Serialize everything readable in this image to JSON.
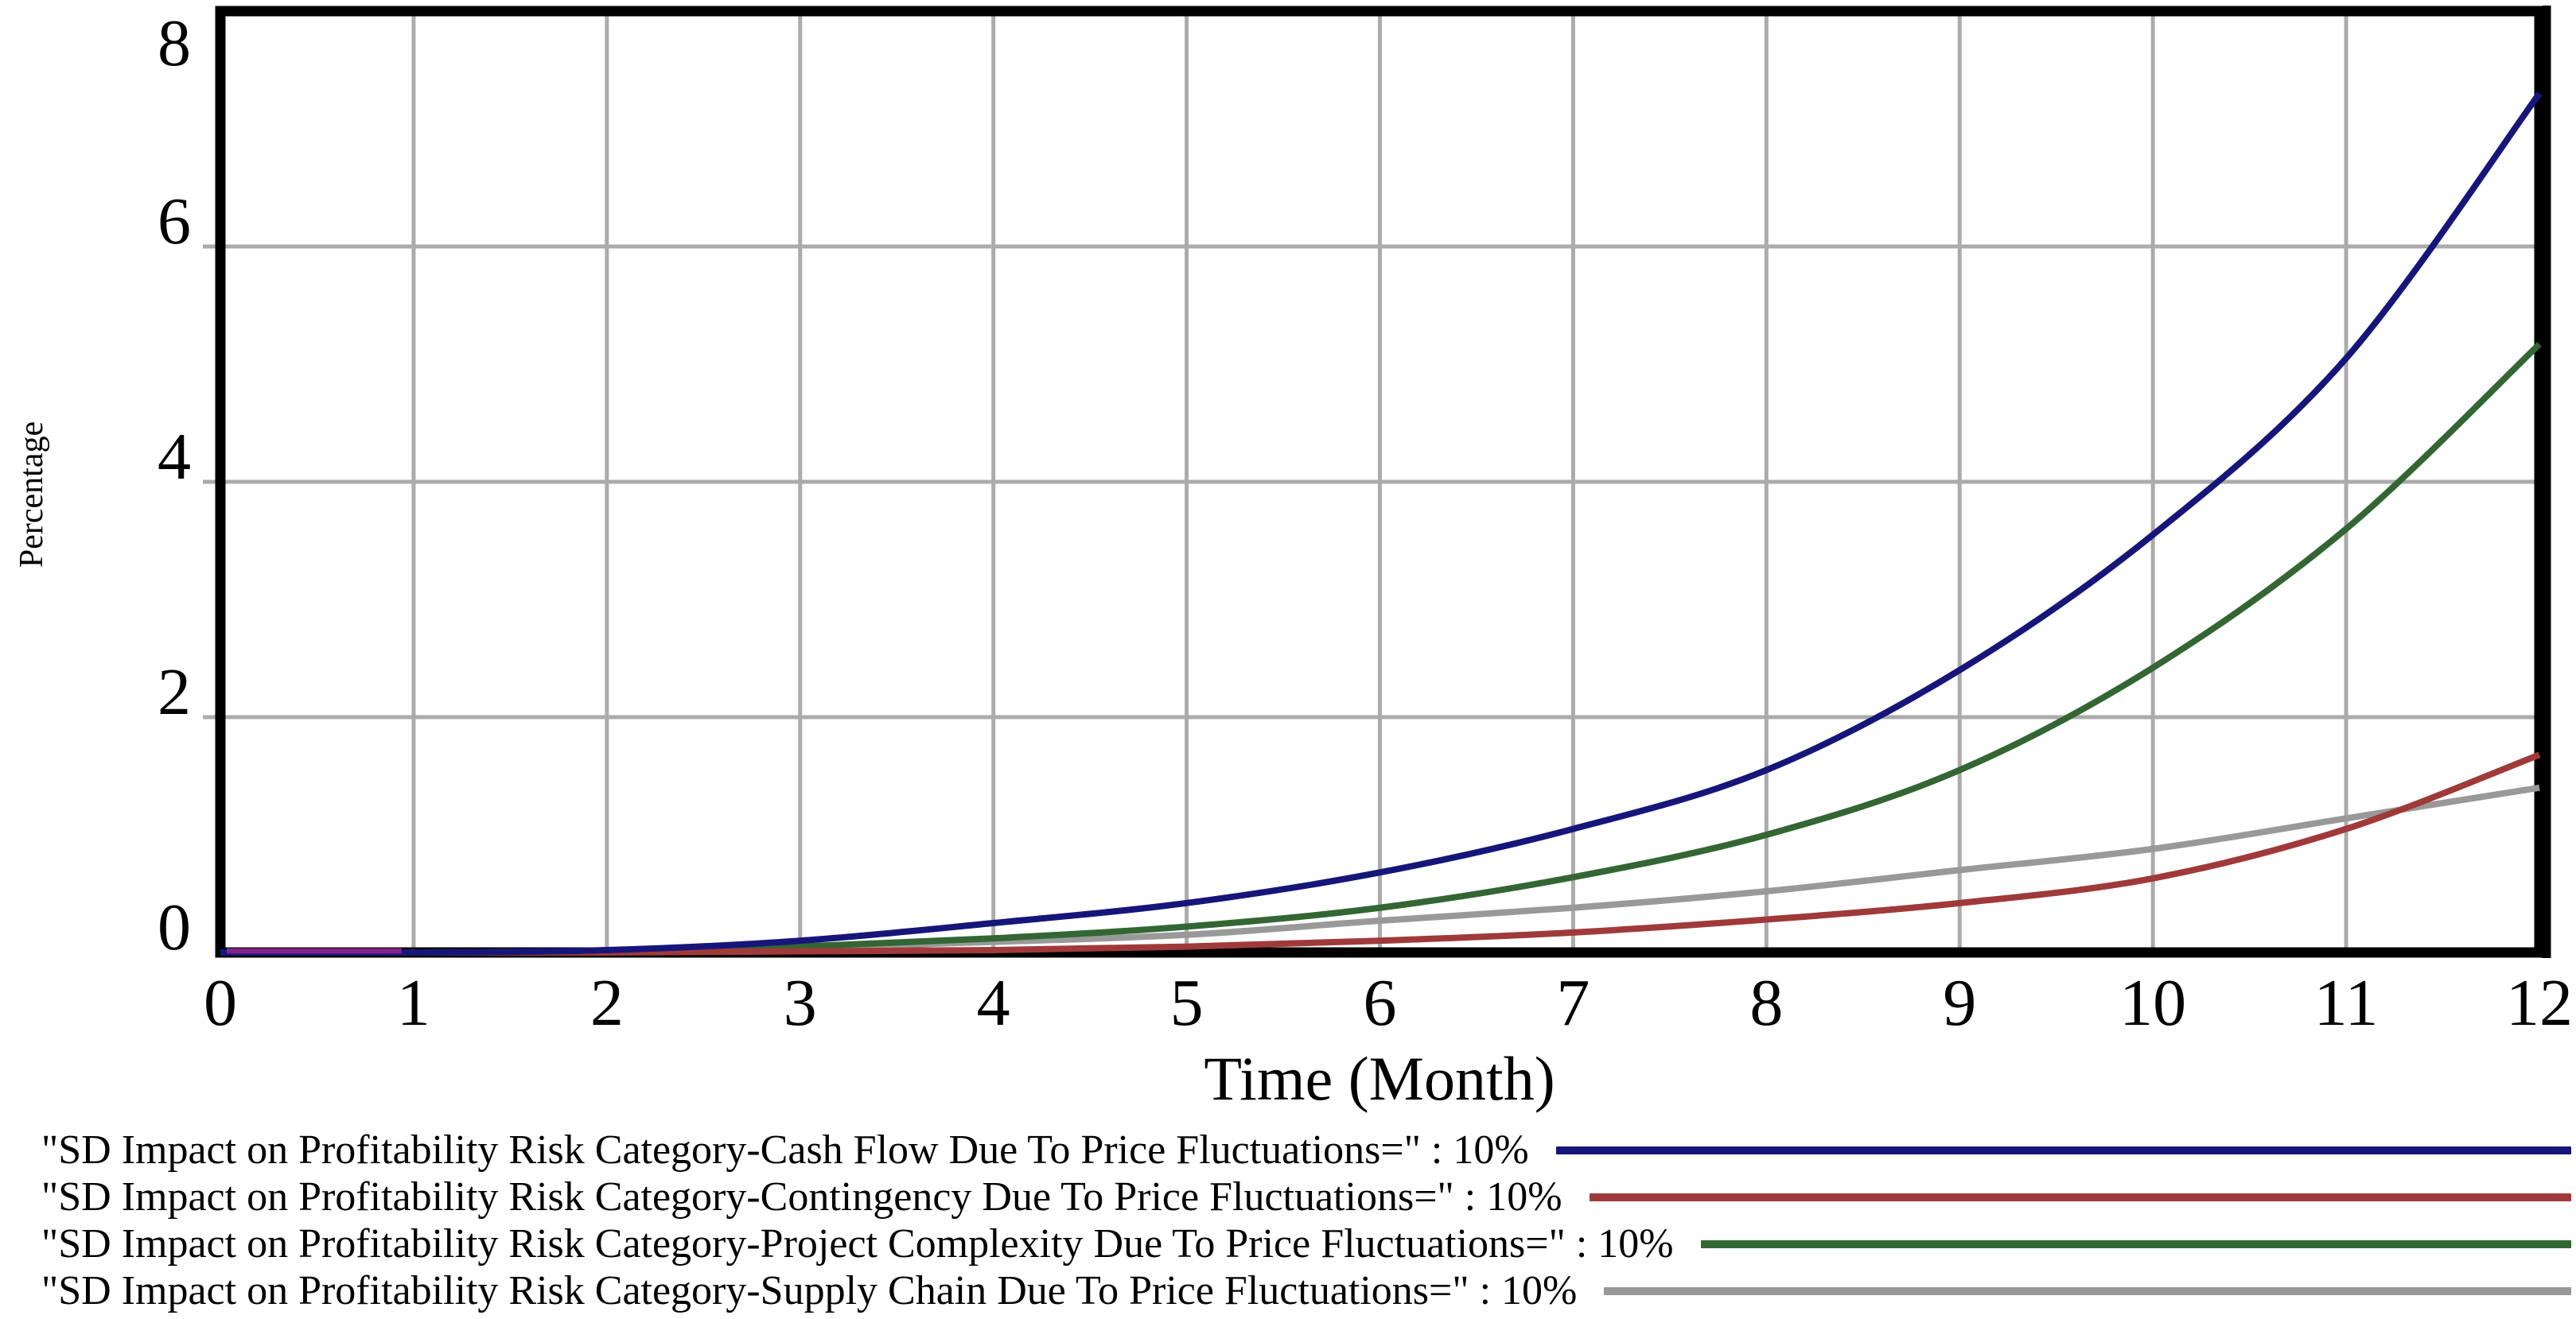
{
  "chart_data": {
    "type": "line",
    "title": "",
    "xlabel": "Time (Month)",
    "ylabel": "Percentage",
    "xlim": [
      0,
      12
    ],
    "ylim": [
      0,
      8
    ],
    "x_ticks": [
      0,
      1,
      2,
      3,
      4,
      5,
      6,
      7,
      8,
      9,
      10,
      11,
      12
    ],
    "y_ticks": [
      0,
      2,
      4,
      6,
      8
    ],
    "grid": true,
    "gridline_color": "#ababab",
    "frame_color": "#000000",
    "legend_position": "bottom",
    "x": [
      0,
      1,
      2,
      3,
      4,
      5,
      6,
      7,
      8,
      9,
      10,
      11,
      12
    ],
    "series": [
      {
        "name": "\"SD Impact on Profitability Risk Category-Cash Flow Due To Price Fluctuations=\" : 10%",
        "slug": "cash-flow",
        "color": "#16167a",
        "values": [
          0,
          0,
          0.02,
          0.1,
          0.25,
          0.42,
          0.68,
          1.05,
          1.55,
          2.4,
          3.55,
          5.05,
          7.3
        ]
      },
      {
        "name": "\"SD Impact on Profitability Risk Category-Contingency Due To Price Fluctuations=\" : 10%",
        "slug": "contingency",
        "color": "#a03a3a",
        "values": [
          0,
          0,
          0,
          0.01,
          0.02,
          0.05,
          0.1,
          0.17,
          0.28,
          0.42,
          0.63,
          1.05,
          1.68
        ]
      },
      {
        "name": "\"SD Impact on Profitability Risk Category-Project Complexity Due To Price Fluctuations=\" : 10%",
        "slug": "project-complexity",
        "color": "#336633",
        "values": [
          0,
          0,
          0.01,
          0.05,
          0.12,
          0.22,
          0.38,
          0.64,
          1.0,
          1.55,
          2.42,
          3.6,
          5.17
        ]
      },
      {
        "name": "\"SD Impact on Profitability Risk Category-Supply Chain Due To Price Fluctuations=\" : 10%",
        "slug": "supply-chain",
        "color": "#999999",
        "values": [
          0,
          0,
          0.01,
          0.04,
          0.09,
          0.15,
          0.27,
          0.38,
          0.52,
          0.7,
          0.88,
          1.14,
          1.4
        ]
      }
    ],
    "overlap_artifact_color": "#93268f"
  }
}
